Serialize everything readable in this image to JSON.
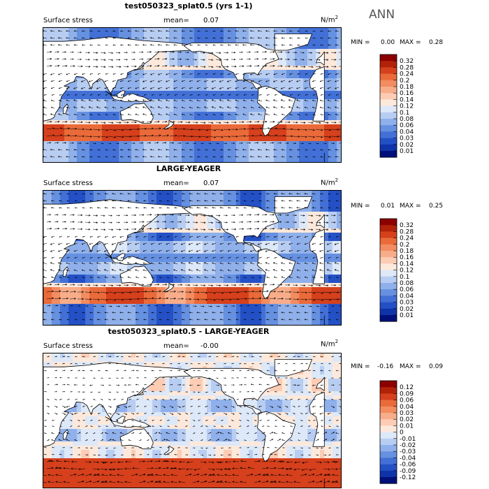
{
  "panels": [
    {
      "title": "test050323_splat0.5 (yrs 1-1)",
      "field_label": "Surface stress",
      "mean_label": "mean=",
      "mean_value": "0.07",
      "units_base": "N/m",
      "units_exp": "2",
      "min_label": "MIN =",
      "min_value": "0.00",
      "max_label": "MAX =",
      "max_value": "0.28",
      "colorbar_levels": [
        "0.32",
        "0.28",
        "0.24",
        "0.2",
        "0.18",
        "0.16",
        "0.14",
        "0.12",
        "0.1",
        "0.08",
        "0.06",
        "0.04",
        "0.03",
        "0.02",
        "0.01"
      ],
      "colorbar_colors": [
        "#8c0000",
        "#b22208",
        "#d6401c",
        "#ea6a3a",
        "#f38c60",
        "#f8ad8a",
        "#fcccb4",
        "#fde9dc",
        "#dde8f8",
        "#b8cdf2",
        "#8fb0ea",
        "#6690e0",
        "#4270d6",
        "#2450c6",
        "#0f34aa",
        "#000f7a"
      ]
    },
    {
      "title": "LARGE-YEAGER",
      "field_label": "Surface stress",
      "mean_label": "mean=",
      "mean_value": "0.07",
      "units_base": "N/m",
      "units_exp": "2",
      "min_label": "MIN =",
      "min_value": "0.01",
      "max_label": "MAX =",
      "max_value": "0.25",
      "colorbar_levels": [
        "0.32",
        "0.28",
        "0.24",
        "0.2",
        "0.18",
        "0.16",
        "0.14",
        "0.12",
        "0.1",
        "0.08",
        "0.06",
        "0.04",
        "0.03",
        "0.02",
        "0.01"
      ],
      "colorbar_colors": [
        "#8c0000",
        "#b22208",
        "#d6401c",
        "#ea6a3a",
        "#f38c60",
        "#f8ad8a",
        "#fcccb4",
        "#fde9dc",
        "#dde8f8",
        "#b8cdf2",
        "#8fb0ea",
        "#6690e0",
        "#4270d6",
        "#2450c6",
        "#0f34aa",
        "#000f7a"
      ]
    },
    {
      "title": "test050323_splat0.5 - LARGE-YEAGER",
      "field_label": "Surface stress",
      "mean_label": "mean=",
      "mean_value": "-0.00",
      "units_base": "N/m",
      "units_exp": "2",
      "min_label": "MIN =",
      "min_value": "-0.16",
      "max_label": "MAX =",
      "max_value": "0.09",
      "colorbar_levels": [
        "0.12",
        "0.09",
        "0.06",
        "0.04",
        "0.03",
        "0.02",
        "0.01",
        "0",
        "-0.01",
        "-0.02",
        "-0.03",
        "-0.04",
        "-0.06",
        "-0.09",
        "-0.12"
      ],
      "colorbar_colors": [
        "#8c0000",
        "#b22208",
        "#d6401c",
        "#ea6a3a",
        "#f38c60",
        "#f8ad8a",
        "#fcccb4",
        "#fde9dc",
        "#dde8f8",
        "#b8cdf2",
        "#8fb0ea",
        "#6690e0",
        "#4270d6",
        "#2450c6",
        "#0f34aa",
        "#000f7a"
      ]
    }
  ],
  "season": "ANN",
  "map_colors": {
    "land": "#ffffff",
    "coast": "#000000",
    "vector": "#000000"
  }
}
